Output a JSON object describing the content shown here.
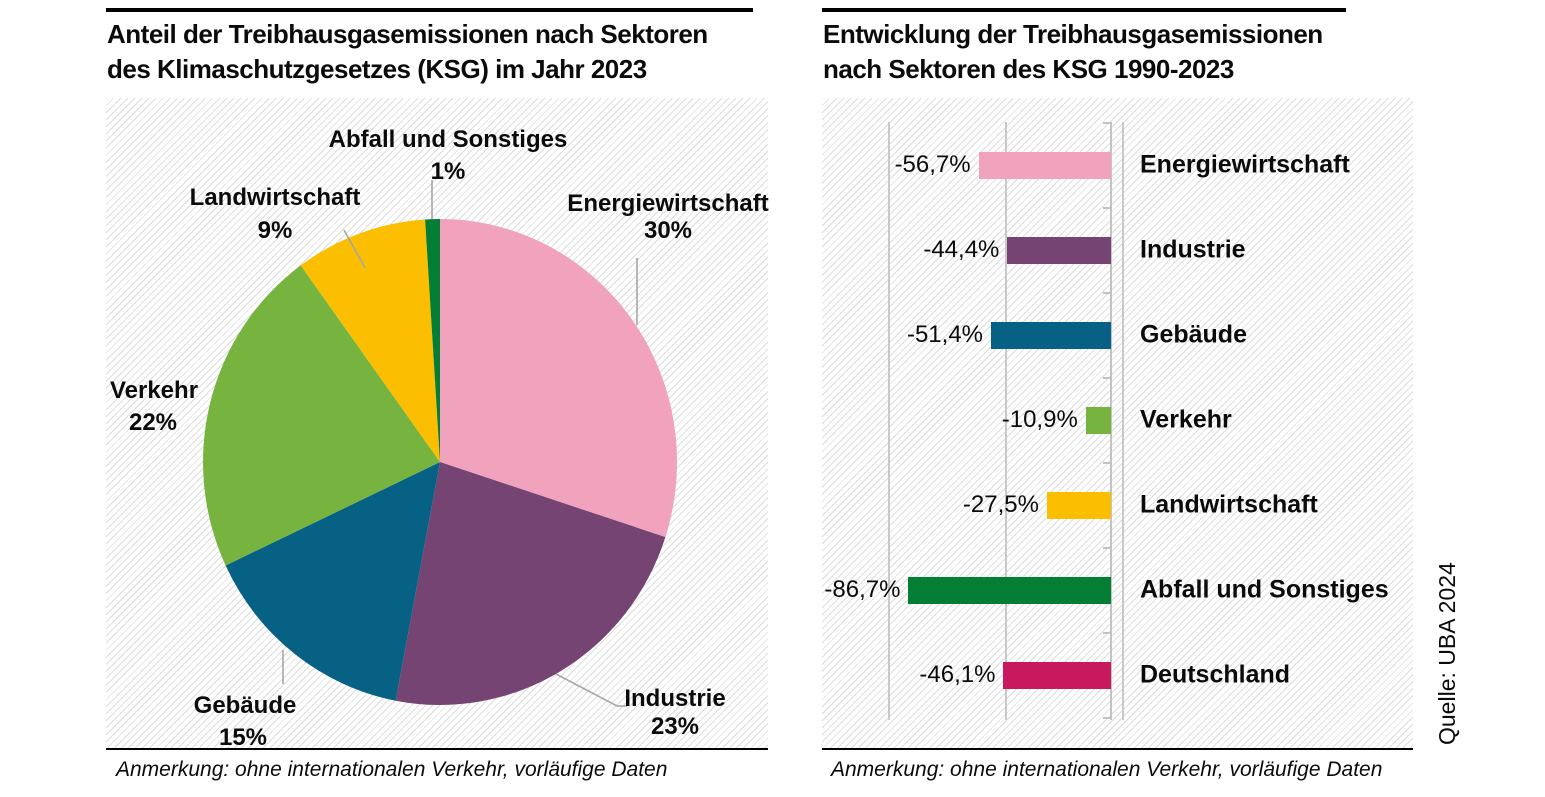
{
  "source_label": "Quelle:  UBA 2024",
  "colors": {
    "Energiewirtschaft": "#F1A3BE",
    "Industrie": "#764473",
    "Gebäude": "#076185",
    "Verkehr": "#76B43F",
    "Landwirtschaft": "#FCBE00",
    "Abfall und Sonstiges": "#047E35",
    "Deutschland": "#C9195E"
  },
  "style_colors": {
    "hatch_line": "#dcdcdc",
    "grid": "#c9c9c9",
    "leader": "#a6a6a6",
    "text": "#0b0b0b"
  },
  "charts": [
    {
      "title_lines": [
        "Anteil der Treibhausgasemissionen  nach Sektoren",
        "des Klimaschutzgesetzes (KSG) im Jahr 2023"
      ],
      "note": "Anmerkung: ohne internationalen Verkehr, vorläufige Daten"
    },
    {
      "title_lines": [
        "Entwicklung der Treibhausgasemissionen",
        "nach Sektoren des KSG 1990-2023"
      ],
      "note": "Anmerkung: ohne internationalen Verkehr, vorläufige Daten"
    }
  ],
  "chart_data": [
    {
      "type": "pie",
      "title": "Anteil der Treibhausgasemissionen nach Sektoren des Klimaschutzgesetzes (KSG) im Jahr 2023",
      "categories": [
        "Energiewirtschaft",
        "Industrie",
        "Gebäude",
        "Verkehr",
        "Landwirtschaft",
        "Abfall und Sonstiges"
      ],
      "values": [
        30,
        23,
        15,
        22,
        9,
        1
      ],
      "value_labels": [
        "30%",
        "23%",
        "15%",
        "22%",
        "9%",
        "1%"
      ],
      "unit": "%",
      "start_angle": "12-oclock",
      "direction": "clockwise",
      "note": "Anmerkung: ohne internationalen Verkehr, vorläufige Daten"
    },
    {
      "type": "bar",
      "orientation": "horizontal",
      "title": "Entwicklung der Treibhausgasemissionen nach Sektoren des KSG 1990-2023",
      "categories": [
        "Energiewirtschaft",
        "Industrie",
        "Gebäude",
        "Verkehr",
        "Landwirtschaft",
        "Abfall und Sonstiges",
        "Deutschland"
      ],
      "values": [
        -56.7,
        -44.4,
        -51.4,
        -10.9,
        -27.5,
        -86.7,
        -46.1
      ],
      "value_labels": [
        "-56,7%",
        "-44,4%",
        "-51,4%",
        "-10,9%",
        "-27,5%",
        "-86,7%",
        "-46,1%"
      ],
      "unit": "%",
      "xlim": [
        -95,
        5
      ],
      "gridlines_at": [
        -95,
        -45,
        5
      ],
      "baseline_at": 0,
      "grid": true,
      "legend_position": "right-of-bars",
      "note": "Anmerkung: ohne internationalen Verkehr, vorläufige Daten"
    }
  ]
}
